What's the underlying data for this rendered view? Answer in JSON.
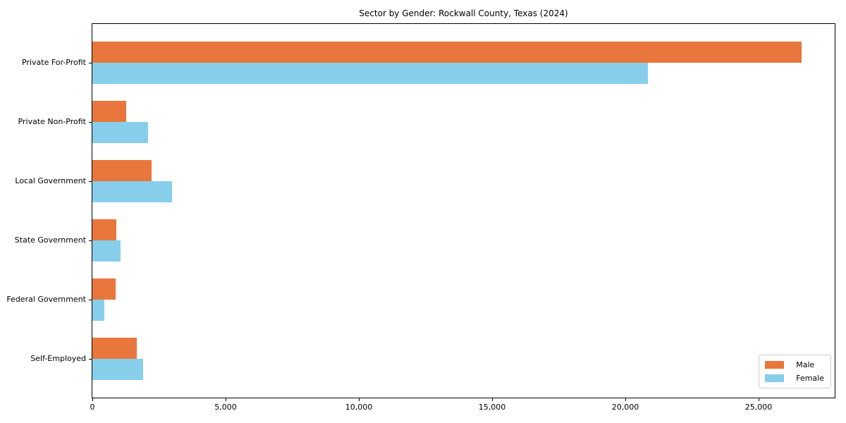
{
  "chart_data": {
    "type": "bar",
    "orientation": "horizontal",
    "title": "Sector by Gender: Rockwall County, Texas (2024)",
    "categories": [
      "Private For-Profit",
      "Private Non-Profit",
      "Local Government",
      "State Government",
      "Federal Government",
      "Self-Employed"
    ],
    "series": [
      {
        "name": "Male",
        "color": "#e8763d",
        "values": [
          26610,
          1270,
          2220,
          900,
          870,
          1670
        ]
      },
      {
        "name": "Female",
        "color": "#87ceeb",
        "values": [
          20850,
          2090,
          3000,
          1060,
          450,
          1900
        ]
      }
    ],
    "xlabel": "",
    "ylabel": "",
    "xlim": [
      0,
      27910
    ],
    "xticks": [
      {
        "value": 0,
        "label": "0"
      },
      {
        "value": 5000,
        "label": "5,000"
      },
      {
        "value": 10000,
        "label": "10,000"
      },
      {
        "value": 15000,
        "label": "15,000"
      },
      {
        "value": 20000,
        "label": "20,000"
      },
      {
        "value": 25000,
        "label": "25,000"
      }
    ],
    "grid": false,
    "legend": {
      "position": "lower right",
      "entries": [
        "Male",
        "Female"
      ]
    },
    "colors": {
      "male": "#e8763d",
      "female": "#87ceeb",
      "frame": "#000000",
      "legend_border": "#cccccc",
      "background": "#ffffff"
    }
  }
}
